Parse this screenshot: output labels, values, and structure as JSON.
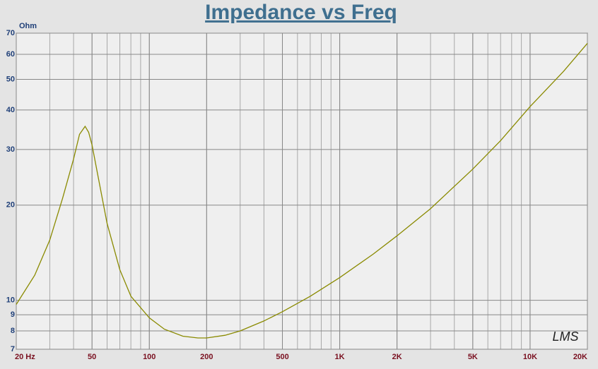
{
  "chart_data": {
    "type": "line",
    "title": "Impedance vs Freq",
    "y_unit": "Ohm",
    "watermark": "LMS",
    "log_x": true,
    "log_y": true,
    "grid": true,
    "x": [
      20,
      25,
      30,
      35,
      40,
      43,
      46,
      48,
      50,
      55,
      60,
      70,
      80,
      100,
      120,
      150,
      180,
      200,
      250,
      300,
      400,
      500,
      700,
      1000,
      1500,
      2000,
      3000,
      5000,
      7000,
      10000,
      15000,
      20000
    ],
    "series": [
      {
        "name": "Impedance",
        "color": "#8a8a00",
        "values": [
          9.7,
          12,
          15.5,
          21,
          28,
          33.5,
          35.5,
          34,
          31,
          23,
          17.5,
          12.5,
          10.3,
          8.8,
          8.1,
          7.7,
          7.6,
          7.6,
          7.75,
          8.0,
          8.6,
          9.2,
          10.3,
          11.8,
          14,
          16,
          19.5,
          26,
          32,
          41,
          53,
          65
        ]
      }
    ],
    "xlim": [
      20,
      20000
    ],
    "xticks": [
      {
        "value": 20,
        "label": "20 Hz"
      },
      50,
      100,
      200,
      500,
      {
        "value": 1000,
        "label": "1K"
      },
      {
        "value": 2000,
        "label": "2K"
      },
      {
        "value": 5000,
        "label": "5K"
      },
      {
        "value": 10000,
        "label": "10K"
      },
      {
        "value": 20000,
        "label": "20K"
      }
    ],
    "ylim": [
      7,
      70
    ],
    "yticks": [
      7,
      8,
      9,
      10,
      20,
      30,
      40,
      50,
      60,
      70
    ]
  }
}
